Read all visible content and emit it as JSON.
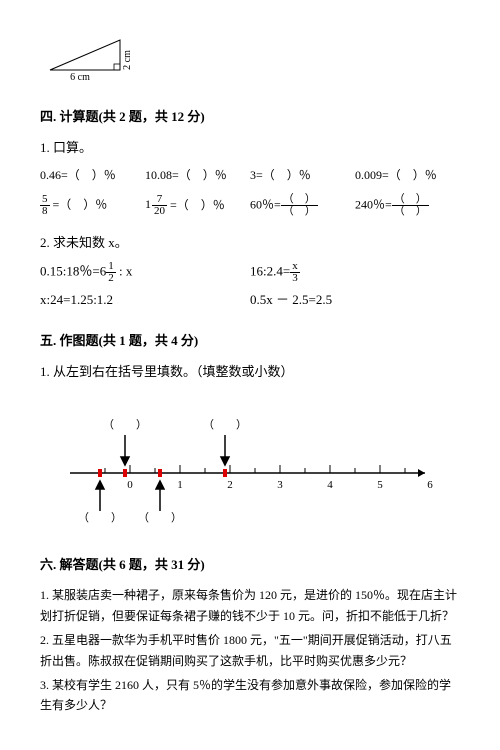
{
  "triangle": {
    "base_label": "6 cm",
    "height_label": "2 cm"
  },
  "section4": {
    "title": "四. 计算题(共 2 题，共 12 分)",
    "p1": {
      "label": "1. 口算。",
      "row1": {
        "a": "0.46=（　）％",
        "b": "10.08=（　）％",
        "c": "3=（　）％",
        "d": "0.009=（　）％"
      },
      "row2": {
        "a_num": "5",
        "a_den": "8",
        "a_suffix": " =（　）％",
        "b_whole": "1",
        "b_num": "7",
        "b_den": "20",
        "b_suffix": " =（　）％",
        "c_prefix": "60％=",
        "c_num": "（　）",
        "c_den": "（　）",
        "d_prefix": "240％=",
        "d_num": "（　）",
        "d_den": "（　）"
      }
    },
    "p2": {
      "label": "2. 求未知数 x。",
      "row1": {
        "a_prefix": "0.15:18％=6",
        "a_num": "1",
        "a_den": "2",
        "a_suffix": " : x",
        "b_prefix": "16:2.4=",
        "b_num": "x",
        "b_den": "3"
      },
      "row2": {
        "a": "x:24=1.25:1.2",
        "b": "0.5x － 2.5=2.5"
      }
    }
  },
  "section5": {
    "title": "五. 作图题(共 1 题，共 4 分)",
    "p1": {
      "label": "1. 从左到右在括号里填数。（填整数或小数）"
    },
    "numberline": {
      "ticks": [
        "0",
        "1",
        "2",
        "3",
        "4",
        "5",
        "6"
      ],
      "top_blank": "（　　）",
      "bottom_blank": "（　　）"
    }
  },
  "section6": {
    "title": "六. 解答题(共 6 题，共 31 分)",
    "problems": {
      "p1": "1. 某服装店卖一种裙子，原来每条售价为 120 元，是进价的 150％。现在店主计划打折促销，但要保证每条裙子赚的钱不少于 10 元。问，折扣不能低于几折？",
      "p2": "2. 五星电器一款华为手机平时售价 1800 元，\"五一\"期间开展促销活动，打八五折出售。陈叔叔在促销期间购买了这款手机，比平时购买优惠多少元？",
      "p3": "3. 某校有学生 2160 人，只有 5％的学生没有参加意外事故保险，参加保险的学生有多少人？"
    }
  }
}
